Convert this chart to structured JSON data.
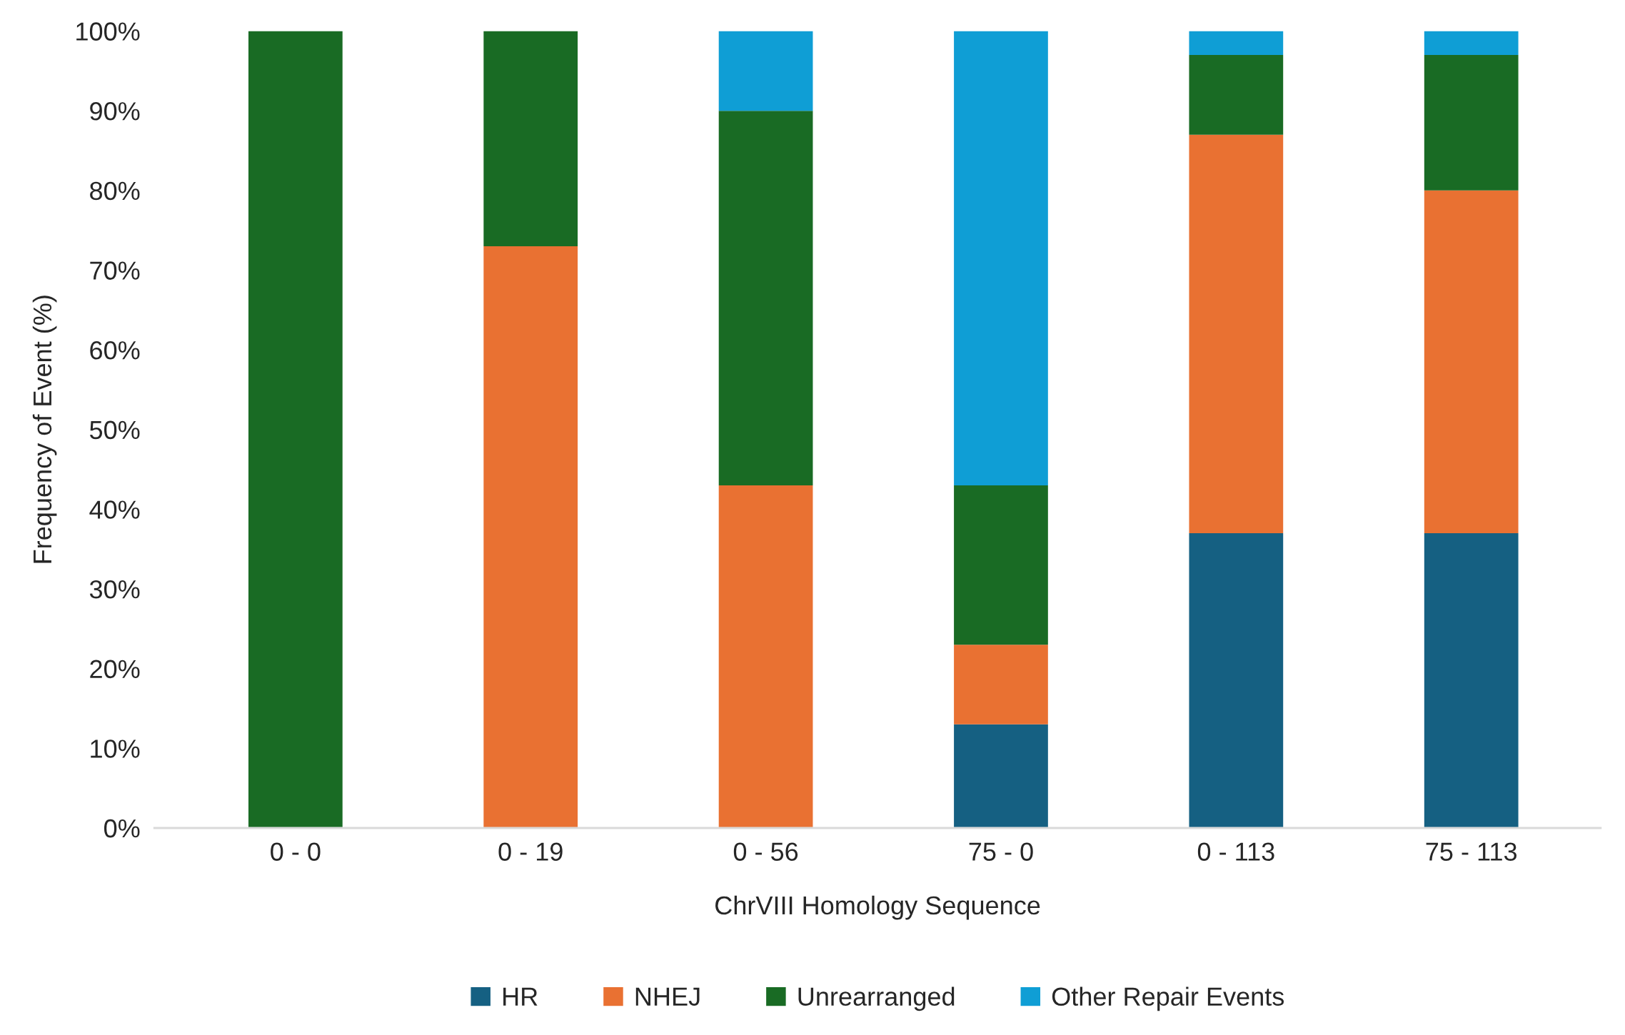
{
  "chart_data": {
    "type": "bar",
    "stacked": true,
    "xlabel": "ChrVIII Homology Sequence",
    "ylabel": "Frequency of Event (%)",
    "categories": [
      "0 - 0",
      "0 - 19",
      "0 - 56",
      "75 - 0",
      "0 - 113",
      "75 - 113"
    ],
    "series": [
      {
        "name": "HR",
        "color": "#156082",
        "values": [
          0,
          0,
          0,
          13,
          37,
          37
        ]
      },
      {
        "name": "NHEJ",
        "color": "#e97132",
        "values": [
          0,
          73,
          43,
          10,
          50,
          43
        ]
      },
      {
        "name": "Unrearranged",
        "color": "#196b24",
        "values": [
          100,
          27,
          47,
          20,
          10,
          17
        ]
      },
      {
        "name": "Other Repair Events",
        "color": "#0f9ed5",
        "values": [
          0,
          0,
          10,
          57,
          3,
          3
        ]
      }
    ],
    "ylim": [
      0,
      100
    ],
    "yticks": [
      {
        "value": 0,
        "label": "0%"
      },
      {
        "value": 10,
        "label": "10%"
      },
      {
        "value": 20,
        "label": "20%"
      },
      {
        "value": 30,
        "label": "30%"
      },
      {
        "value": 40,
        "label": "40%"
      },
      {
        "value": 50,
        "label": "50%"
      },
      {
        "value": 60,
        "label": "60%"
      },
      {
        "value": 70,
        "label": "70%"
      },
      {
        "value": 80,
        "label": "80%"
      },
      {
        "value": 90,
        "label": "90%"
      },
      {
        "value": 100,
        "label": "100%"
      }
    ],
    "grid": false,
    "legend": "bottom"
  }
}
